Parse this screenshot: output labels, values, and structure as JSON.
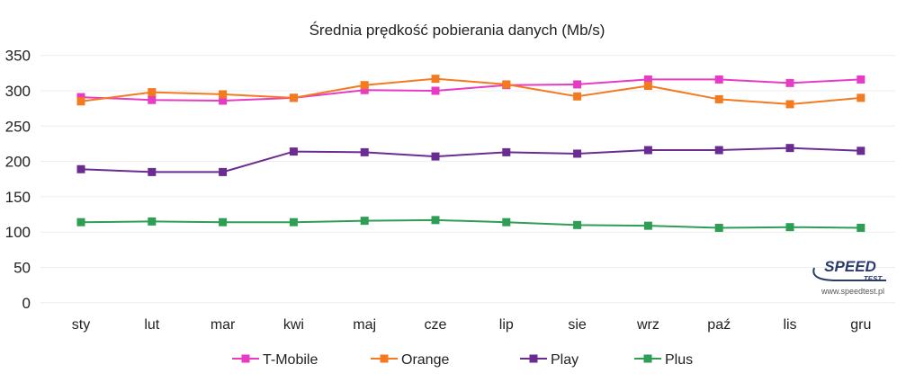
{
  "chart_data": {
    "type": "line",
    "title": "Średnia prędkość pobierania danych (Mb/s)",
    "xlabel": "",
    "ylabel": "",
    "ylim": [
      0,
      350
    ],
    "yticks": [
      0,
      50,
      100,
      150,
      200,
      250,
      300,
      350
    ],
    "grid": true,
    "legend_position": "bottom",
    "categories": [
      "sty",
      "lut",
      "mar",
      "kwi",
      "maj",
      "cze",
      "lip",
      "sie",
      "wrz",
      "paź",
      "lis",
      "gru"
    ],
    "series": [
      {
        "name": "T-Mobile",
        "color": "#e83bc4",
        "values": [
          291,
          287,
          286,
          290,
          301,
          300,
          308,
          309,
          316,
          316,
          311,
          316
        ]
      },
      {
        "name": "Orange",
        "color": "#f47a20",
        "values": [
          285,
          298,
          295,
          290,
          308,
          317,
          309,
          292,
          307,
          288,
          281,
          290
        ]
      },
      {
        "name": "Play",
        "color": "#6a2c91",
        "values": [
          189,
          185,
          185,
          214,
          213,
          207,
          213,
          211,
          216,
          216,
          219,
          215
        ]
      },
      {
        "name": "Plus",
        "color": "#2e9e55",
        "values": [
          114,
          115,
          114,
          114,
          116,
          117,
          114,
          110,
          109,
          106,
          107,
          106
        ]
      }
    ]
  },
  "logo": {
    "text": "SPEED TEST",
    "url_text": "www.speedtest.pl"
  }
}
